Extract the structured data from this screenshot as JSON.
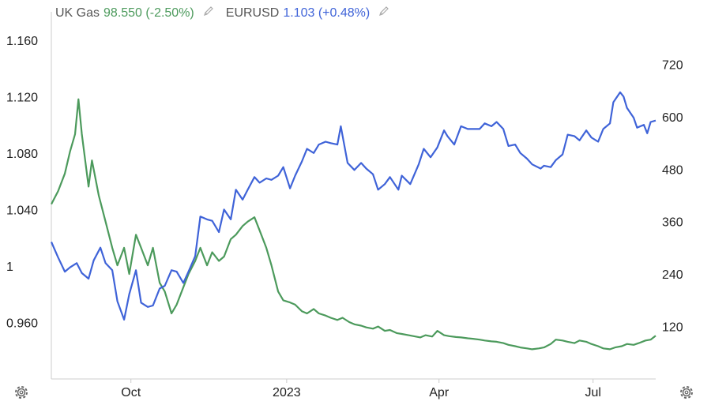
{
  "legend": {
    "series_a": {
      "name": "UK Gas",
      "value": "98.550",
      "change": "(-2.50%)"
    },
    "series_b": {
      "name": "EURUSD",
      "value": "1.103",
      "change": "(+0.48%)"
    },
    "edit_icon": "pencil-icon"
  },
  "settings_icon": "gear-icon",
  "colors": {
    "uk_gas": "#4c9a5c",
    "eurusd": "#3f63d8",
    "text": "#222222",
    "axis": "#cccccc"
  },
  "chart_data": {
    "type": "line",
    "x_range": [
      "2022-08-15",
      "2023-08-07"
    ],
    "x_ticks": [
      {
        "date": "2022-10-01",
        "label": "Oct"
      },
      {
        "date": "2023-01-01",
        "label": "2023"
      },
      {
        "date": "2023-04-01",
        "label": "Apr"
      },
      {
        "date": "2023-07-01",
        "label": "Jul"
      }
    ],
    "y_left": {
      "series": "EURUSD",
      "range": [
        0.92,
        1.18
      ],
      "ticks": [
        "1.160",
        "1.120",
        "1.080",
        "1.040",
        "1",
        "0.960"
      ]
    },
    "y_right": {
      "series": "UK Gas",
      "range": [
        0,
        840
      ],
      "ticks": [
        "720",
        "600",
        "480",
        "360",
        "240",
        "120"
      ]
    },
    "grid": false,
    "legend_position": "top-left",
    "series": [
      {
        "name": "UK Gas",
        "axis": "right",
        "points": [
          [
            "2022-08-15",
            400
          ],
          [
            "2022-08-19",
            430
          ],
          [
            "2022-08-23",
            470
          ],
          [
            "2022-08-26",
            520
          ],
          [
            "2022-08-29",
            560
          ],
          [
            "2022-08-31",
            640
          ],
          [
            "2022-09-02",
            560
          ],
          [
            "2022-09-06",
            440
          ],
          [
            "2022-09-08",
            500
          ],
          [
            "2022-09-12",
            420
          ],
          [
            "2022-09-16",
            360
          ],
          [
            "2022-09-20",
            300
          ],
          [
            "2022-09-23",
            260
          ],
          [
            "2022-09-27",
            300
          ],
          [
            "2022-09-30",
            240
          ],
          [
            "2022-10-04",
            330
          ],
          [
            "2022-10-07",
            300
          ],
          [
            "2022-10-11",
            260
          ],
          [
            "2022-10-14",
            300
          ],
          [
            "2022-10-18",
            220
          ],
          [
            "2022-10-21",
            200
          ],
          [
            "2022-10-25",
            150
          ],
          [
            "2022-10-28",
            170
          ],
          [
            "2022-11-01",
            210
          ],
          [
            "2022-11-04",
            240
          ],
          [
            "2022-11-08",
            270
          ],
          [
            "2022-11-11",
            300
          ],
          [
            "2022-11-15",
            260
          ],
          [
            "2022-11-18",
            290
          ],
          [
            "2022-11-22",
            270
          ],
          [
            "2022-11-25",
            280
          ],
          [
            "2022-11-29",
            320
          ],
          [
            "2022-12-02",
            330
          ],
          [
            "2022-12-06",
            350
          ],
          [
            "2022-12-09",
            360
          ],
          [
            "2022-12-13",
            370
          ],
          [
            "2022-12-16",
            340
          ],
          [
            "2022-12-20",
            300
          ],
          [
            "2022-12-23",
            260
          ],
          [
            "2022-12-27",
            200
          ],
          [
            "2022-12-30",
            180
          ],
          [
            "2023-01-03",
            175
          ],
          [
            "2023-01-06",
            170
          ],
          [
            "2023-01-10",
            155
          ],
          [
            "2023-01-13",
            150
          ],
          [
            "2023-01-17",
            160
          ],
          [
            "2023-01-20",
            150
          ],
          [
            "2023-01-24",
            145
          ],
          [
            "2023-01-27",
            140
          ],
          [
            "2023-01-31",
            135
          ],
          [
            "2023-02-03",
            140
          ],
          [
            "2023-02-07",
            130
          ],
          [
            "2023-02-10",
            125
          ],
          [
            "2023-02-14",
            122
          ],
          [
            "2023-02-17",
            118
          ],
          [
            "2023-02-21",
            115
          ],
          [
            "2023-02-24",
            120
          ],
          [
            "2023-02-28",
            110
          ],
          [
            "2023-03-03",
            112
          ],
          [
            "2023-03-07",
            105
          ],
          [
            "2023-03-10",
            103
          ],
          [
            "2023-03-14",
            100
          ],
          [
            "2023-03-17",
            98
          ],
          [
            "2023-03-21",
            95
          ],
          [
            "2023-03-24",
            100
          ],
          [
            "2023-03-28",
            97
          ],
          [
            "2023-03-31",
            110
          ],
          [
            "2023-04-04",
            100
          ],
          [
            "2023-04-07",
            98
          ],
          [
            "2023-04-11",
            96
          ],
          [
            "2023-04-14",
            95
          ],
          [
            "2023-04-18",
            93
          ],
          [
            "2023-04-21",
            92
          ],
          [
            "2023-04-25",
            90
          ],
          [
            "2023-04-28",
            88
          ],
          [
            "2023-05-02",
            86
          ],
          [
            "2023-05-05",
            85
          ],
          [
            "2023-05-09",
            82
          ],
          [
            "2023-05-12",
            78
          ],
          [
            "2023-05-16",
            75
          ],
          [
            "2023-05-19",
            72
          ],
          [
            "2023-05-23",
            70
          ],
          [
            "2023-05-26",
            68
          ],
          [
            "2023-05-30",
            70
          ],
          [
            "2023-06-02",
            72
          ],
          [
            "2023-06-06",
            80
          ],
          [
            "2023-06-09",
            90
          ],
          [
            "2023-06-13",
            88
          ],
          [
            "2023-06-16",
            85
          ],
          [
            "2023-06-20",
            82
          ],
          [
            "2023-06-23",
            88
          ],
          [
            "2023-06-27",
            85
          ],
          [
            "2023-06-30",
            80
          ],
          [
            "2023-07-04",
            75
          ],
          [
            "2023-07-07",
            70
          ],
          [
            "2023-07-11",
            68
          ],
          [
            "2023-07-14",
            72
          ],
          [
            "2023-07-18",
            75
          ],
          [
            "2023-07-21",
            80
          ],
          [
            "2023-07-25",
            78
          ],
          [
            "2023-07-28",
            82
          ],
          [
            "2023-08-01",
            88
          ],
          [
            "2023-08-04",
            90
          ],
          [
            "2023-08-07",
            99
          ]
        ]
      },
      {
        "name": "EURUSD",
        "axis": "left",
        "points": [
          [
            "2022-08-15",
            1.017
          ],
          [
            "2022-08-19",
            1.006
          ],
          [
            "2022-08-23",
            0.996
          ],
          [
            "2022-08-26",
            0.999
          ],
          [
            "2022-08-30",
            1.002
          ],
          [
            "2022-09-02",
            0.995
          ],
          [
            "2022-09-06",
            0.991
          ],
          [
            "2022-09-09",
            1.004
          ],
          [
            "2022-09-13",
            1.013
          ],
          [
            "2022-09-16",
            1.002
          ],
          [
            "2022-09-20",
            0.997
          ],
          [
            "2022-09-23",
            0.975
          ],
          [
            "2022-09-27",
            0.962
          ],
          [
            "2022-09-30",
            0.98
          ],
          [
            "2022-10-04",
            0.997
          ],
          [
            "2022-10-07",
            0.974
          ],
          [
            "2022-10-11",
            0.971
          ],
          [
            "2022-10-14",
            0.972
          ],
          [
            "2022-10-18",
            0.984
          ],
          [
            "2022-10-21",
            0.986
          ],
          [
            "2022-10-25",
            0.997
          ],
          [
            "2022-10-28",
            0.996
          ],
          [
            "2022-11-01",
            0.988
          ],
          [
            "2022-11-04",
            0.996
          ],
          [
            "2022-11-08",
            1.007
          ],
          [
            "2022-11-11",
            1.035
          ],
          [
            "2022-11-15",
            1.033
          ],
          [
            "2022-11-18",
            1.032
          ],
          [
            "2022-11-22",
            1.024
          ],
          [
            "2022-11-25",
            1.04
          ],
          [
            "2022-11-29",
            1.033
          ],
          [
            "2022-12-02",
            1.054
          ],
          [
            "2022-12-06",
            1.047
          ],
          [
            "2022-12-09",
            1.054
          ],
          [
            "2022-12-13",
            1.063
          ],
          [
            "2022-12-16",
            1.059
          ],
          [
            "2022-12-20",
            1.062
          ],
          [
            "2022-12-23",
            1.061
          ],
          [
            "2022-12-27",
            1.064
          ],
          [
            "2022-12-30",
            1.07
          ],
          [
            "2023-01-03",
            1.055
          ],
          [
            "2023-01-06",
            1.064
          ],
          [
            "2023-01-10",
            1.074
          ],
          [
            "2023-01-13",
            1.083
          ],
          [
            "2023-01-17",
            1.08
          ],
          [
            "2023-01-20",
            1.086
          ],
          [
            "2023-01-24",
            1.088
          ],
          [
            "2023-01-27",
            1.087
          ],
          [
            "2023-01-31",
            1.086
          ],
          [
            "2023-02-02",
            1.099
          ],
          [
            "2023-02-06",
            1.073
          ],
          [
            "2023-02-10",
            1.068
          ],
          [
            "2023-02-14",
            1.073
          ],
          [
            "2023-02-17",
            1.069
          ],
          [
            "2023-02-21",
            1.065
          ],
          [
            "2023-02-24",
            1.054
          ],
          [
            "2023-02-28",
            1.058
          ],
          [
            "2023-03-03",
            1.063
          ],
          [
            "2023-03-08",
            1.054
          ],
          [
            "2023-03-10",
            1.064
          ],
          [
            "2023-03-15",
            1.058
          ],
          [
            "2023-03-20",
            1.072
          ],
          [
            "2023-03-23",
            1.083
          ],
          [
            "2023-03-27",
            1.077
          ],
          [
            "2023-03-31",
            1.084
          ],
          [
            "2023-04-04",
            1.096
          ],
          [
            "2023-04-06",
            1.092
          ],
          [
            "2023-04-10",
            1.086
          ],
          [
            "2023-04-14",
            1.099
          ],
          [
            "2023-04-18",
            1.097
          ],
          [
            "2023-04-21",
            1.097
          ],
          [
            "2023-04-25",
            1.097
          ],
          [
            "2023-04-28",
            1.101
          ],
          [
            "2023-05-02",
            1.099
          ],
          [
            "2023-05-05",
            1.102
          ],
          [
            "2023-05-09",
            1.097
          ],
          [
            "2023-05-12",
            1.085
          ],
          [
            "2023-05-16",
            1.086
          ],
          [
            "2023-05-19",
            1.08
          ],
          [
            "2023-05-23",
            1.076
          ],
          [
            "2023-05-26",
            1.072
          ],
          [
            "2023-05-31",
            1.069
          ],
          [
            "2023-06-02",
            1.071
          ],
          [
            "2023-06-06",
            1.07
          ],
          [
            "2023-06-09",
            1.075
          ],
          [
            "2023-06-13",
            1.079
          ],
          [
            "2023-06-16",
            1.093
          ],
          [
            "2023-06-20",
            1.092
          ],
          [
            "2023-06-23",
            1.089
          ],
          [
            "2023-06-27",
            1.096
          ],
          [
            "2023-06-30",
            1.091
          ],
          [
            "2023-07-04",
            1.088
          ],
          [
            "2023-07-07",
            1.097
          ],
          [
            "2023-07-11",
            1.101
          ],
          [
            "2023-07-13",
            1.116
          ],
          [
            "2023-07-17",
            1.123
          ],
          [
            "2023-07-19",
            1.12
          ],
          [
            "2023-07-21",
            1.112
          ],
          [
            "2023-07-25",
            1.105
          ],
          [
            "2023-07-27",
            1.098
          ],
          [
            "2023-07-31",
            1.1
          ],
          [
            "2023-08-02",
            1.094
          ],
          [
            "2023-08-04",
            1.102
          ],
          [
            "2023-08-07",
            1.103
          ]
        ]
      }
    ]
  }
}
